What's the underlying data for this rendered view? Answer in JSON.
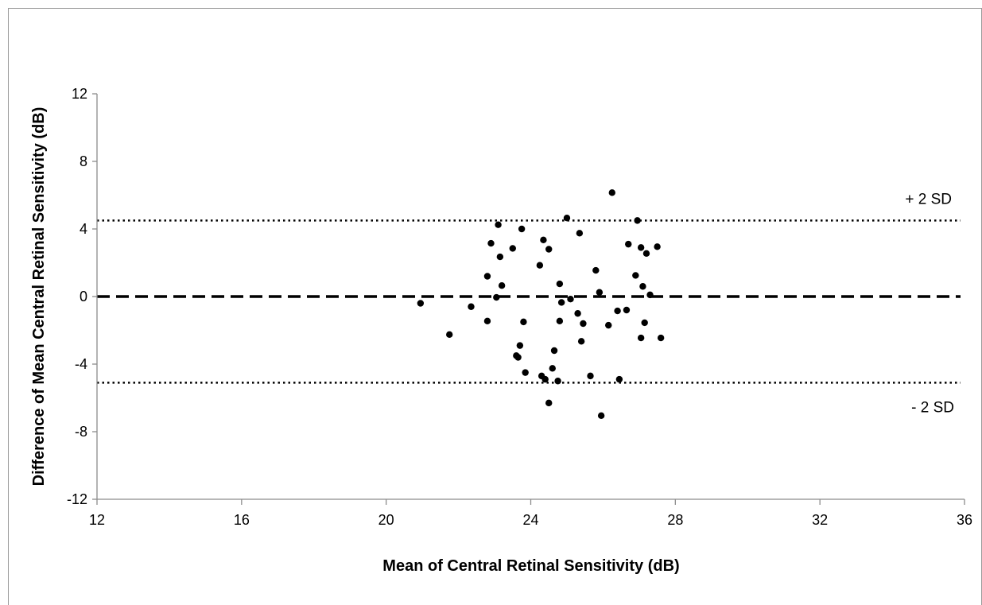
{
  "chart_data": {
    "type": "scatter",
    "xlabel": "Mean of Central Retinal Sensitivity (dB)",
    "ylabel": "Difference of Mean Central Retinal Sensitivity (dB)",
    "xlim": [
      12,
      36
    ],
    "ylim": [
      -12,
      12
    ],
    "x_ticks": [
      12,
      16,
      20,
      24,
      28,
      32,
      36
    ],
    "y_ticks": [
      12,
      8,
      4,
      0,
      -4,
      -8,
      -12
    ],
    "x_tick_labels": [
      "12",
      "16",
      "20",
      "24",
      "28",
      "32",
      "36"
    ],
    "y_tick_labels": [
      "12",
      "8",
      "4",
      "0",
      "-4",
      "-8",
      "-12"
    ],
    "grid": false,
    "reference_lines": [
      {
        "label": "+ 2 SD",
        "y": 4.5,
        "style": "dotted"
      },
      {
        "label": "",
        "y": 0,
        "style": "dashed"
      },
      {
        "label": "- 2 SD",
        "y": -5.1,
        "style": "dotted"
      }
    ],
    "points": [
      {
        "x": 20.95,
        "y": -0.4
      },
      {
        "x": 21.75,
        "y": -2.25
      },
      {
        "x": 22.35,
        "y": -0.6
      },
      {
        "x": 22.8,
        "y": 1.2
      },
      {
        "x": 22.8,
        "y": -1.45
      },
      {
        "x": 22.9,
        "y": 3.15
      },
      {
        "x": 23.05,
        "y": -0.05
      },
      {
        "x": 23.1,
        "y": 4.25
      },
      {
        "x": 23.15,
        "y": 2.35
      },
      {
        "x": 23.2,
        "y": 0.65
      },
      {
        "x": 23.5,
        "y": 2.85
      },
      {
        "x": 23.6,
        "y": -3.5
      },
      {
        "x": 23.65,
        "y": -3.6
      },
      {
        "x": 23.7,
        "y": -2.9
      },
      {
        "x": 23.75,
        "y": 4.0
      },
      {
        "x": 23.8,
        "y": -1.5
      },
      {
        "x": 23.85,
        "y": -4.5
      },
      {
        "x": 24.25,
        "y": 1.85
      },
      {
        "x": 24.3,
        "y": -4.7
      },
      {
        "x": 24.35,
        "y": 3.35
      },
      {
        "x": 24.4,
        "y": -4.9
      },
      {
        "x": 24.5,
        "y": 2.8
      },
      {
        "x": 24.5,
        "y": -6.3
      },
      {
        "x": 24.6,
        "y": -4.25
      },
      {
        "x": 24.65,
        "y": -3.2
      },
      {
        "x": 24.75,
        "y": -5.0
      },
      {
        "x": 24.8,
        "y": -1.45
      },
      {
        "x": 24.8,
        "y": 0.75
      },
      {
        "x": 24.85,
        "y": -0.35
      },
      {
        "x": 25.0,
        "y": 4.65
      },
      {
        "x": 25.1,
        "y": -0.15
      },
      {
        "x": 25.3,
        "y": -1.0
      },
      {
        "x": 25.35,
        "y": 3.75
      },
      {
        "x": 25.4,
        "y": -2.65
      },
      {
        "x": 25.45,
        "y": -1.6
      },
      {
        "x": 25.65,
        "y": -4.7
      },
      {
        "x": 25.8,
        "y": 1.55
      },
      {
        "x": 25.9,
        "y": 0.25
      },
      {
        "x": 25.95,
        "y": -7.05
      },
      {
        "x": 26.15,
        "y": -1.7
      },
      {
        "x": 26.25,
        "y": 6.15
      },
      {
        "x": 26.4,
        "y": -0.85
      },
      {
        "x": 26.45,
        "y": -4.9
      },
      {
        "x": 26.65,
        "y": -0.8
      },
      {
        "x": 26.7,
        "y": 3.1
      },
      {
        "x": 26.9,
        "y": 1.25
      },
      {
        "x": 26.95,
        "y": 4.5
      },
      {
        "x": 27.05,
        "y": 2.9
      },
      {
        "x": 27.05,
        "y": -2.45
      },
      {
        "x": 27.1,
        "y": 0.6
      },
      {
        "x": 27.15,
        "y": -1.55
      },
      {
        "x": 27.2,
        "y": 2.55
      },
      {
        "x": 27.3,
        "y": 0.1
      },
      {
        "x": 27.5,
        "y": 2.95
      },
      {
        "x": 27.6,
        "y": -2.45
      }
    ]
  }
}
